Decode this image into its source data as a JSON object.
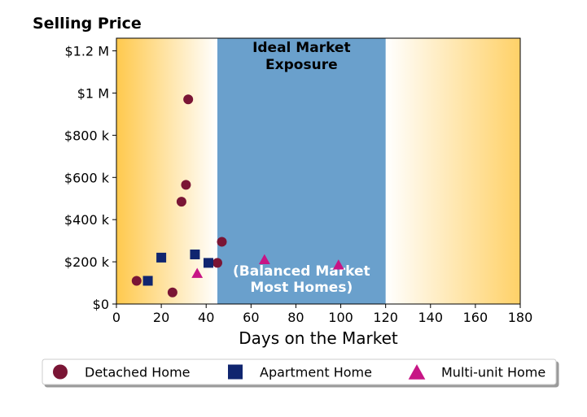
{
  "chart_data": {
    "type": "scatter",
    "title": "Selling Price",
    "xlabel": "Days on the Market",
    "ylabel": "",
    "xlim": [
      0,
      180
    ],
    "ylim": [
      0,
      1260000
    ],
    "x_ticks": [
      0,
      20,
      40,
      60,
      80,
      100,
      120,
      140,
      160,
      180
    ],
    "x_tick_labels": [
      "0",
      "20",
      "40",
      "60",
      "80",
      "100",
      "120",
      "140",
      "160",
      "180"
    ],
    "y_ticks": [
      0,
      200000,
      400000,
      600000,
      800000,
      1000000,
      1200000
    ],
    "y_tick_labels": [
      "$0",
      "$200 k",
      "$400 k",
      "$600 k",
      "$800 k",
      "$1 M",
      "$1.2 M"
    ],
    "grid": false,
    "legend_position": "bottom",
    "bands": [
      {
        "x_range": [
          45,
          120
        ],
        "color": "#6aa0cc",
        "label_top": [
          "Ideal Market",
          "Exposure"
        ],
        "label_bottom": [
          "(Balanced Market",
          "Most Homes)"
        ]
      }
    ],
    "band_gradient_color": "#ffc94d",
    "series": [
      {
        "name": "Detached Home",
        "marker": "circle",
        "color": "#7a1535",
        "points": [
          [
            9,
            110000
          ],
          [
            25,
            55000
          ],
          [
            29,
            485000
          ],
          [
            31,
            565000
          ],
          [
            32,
            970000
          ],
          [
            45,
            195000
          ],
          [
            47,
            295000
          ]
        ]
      },
      {
        "name": "Apartment Home",
        "marker": "square",
        "color": "#10256f",
        "points": [
          [
            14,
            110000
          ],
          [
            20,
            220000
          ],
          [
            35,
            235000
          ],
          [
            41,
            195000
          ]
        ]
      },
      {
        "name": "Multi-unit Home",
        "marker": "triangle",
        "color": "#c71585",
        "points": [
          [
            36,
            145000
          ],
          [
            66,
            210000
          ],
          [
            99,
            185000
          ]
        ]
      }
    ]
  }
}
